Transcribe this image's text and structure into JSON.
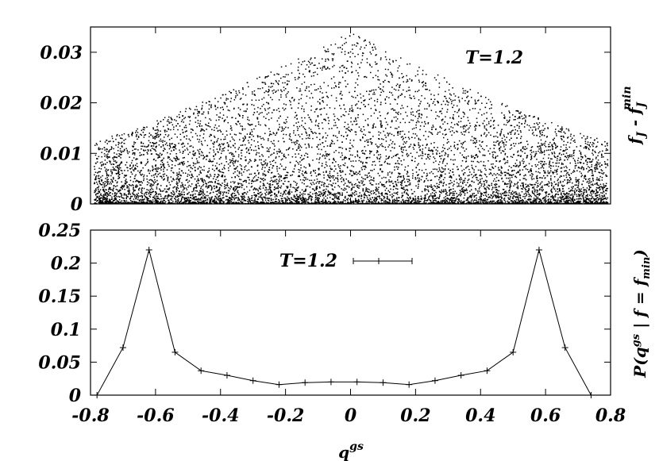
{
  "chart_data": [
    {
      "type": "scatter",
      "title": "",
      "annotation": "T=1.2",
      "ylabel_parts": {
        "base": "f",
        "sub": "J",
        "mid": " - f",
        "sub2": "J",
        "sup2": "min"
      },
      "xlim": [
        -0.8,
        0.8
      ],
      "ylim": [
        0,
        0.035
      ],
      "yticks": [
        0,
        0.01,
        0.02,
        0.03
      ],
      "ytick_labels": [
        "0",
        "0.01",
        "0.02",
        "0.03"
      ],
      "grid": false,
      "description_of_cloud": {
        "x_range": [
          -0.8,
          0.8
        ],
        "y_max_at_center": 0.034,
        "y_max_at_edges": 0.012,
        "n_points_approx": 9000
      }
    },
    {
      "type": "line",
      "legend": "T=1.2",
      "legend_position": "top-center",
      "ylabel_parts": {
        "pre": "P(q",
        "sup": "gs",
        "post": " | f = f",
        "sub": "min",
        "close": ")"
      },
      "xlabel_parts": {
        "base": "q",
        "sup": "gs"
      },
      "xlim": [
        -0.8,
        0.8
      ],
      "ylim": [
        0,
        0.25
      ],
      "xticks": [
        -0.8,
        -0.6,
        -0.4,
        -0.2,
        0,
        0.2,
        0.4,
        0.6,
        0.8
      ],
      "xtick_labels": [
        "-0.8",
        "-0.6",
        "-0.4",
        "-0.2",
        "0",
        "0.2",
        "0.4",
        "0.6",
        "0.8"
      ],
      "yticks": [
        0,
        0.05,
        0.1,
        0.15,
        0.2,
        0.25
      ],
      "ytick_labels": [
        "0",
        "0.05",
        "0.1",
        "0.15",
        "0.2",
        "0.25"
      ],
      "grid": false,
      "series": [
        {
          "name": "T=1.2",
          "x": [
            -0.78,
            -0.7,
            -0.62,
            -0.54,
            -0.46,
            -0.38,
            -0.3,
            -0.22,
            -0.14,
            -0.06,
            0.02,
            0.1,
            0.18,
            0.26,
            0.34,
            0.42,
            0.5,
            0.58,
            0.66,
            0.74
          ],
          "y": [
            0.0,
            0.072,
            0.22,
            0.065,
            0.037,
            0.03,
            0.022,
            0.016,
            0.019,
            0.02,
            0.02,
            0.019,
            0.016,
            0.022,
            0.03,
            0.037,
            0.065,
            0.22,
            0.072,
            0.0
          ]
        }
      ]
    }
  ]
}
